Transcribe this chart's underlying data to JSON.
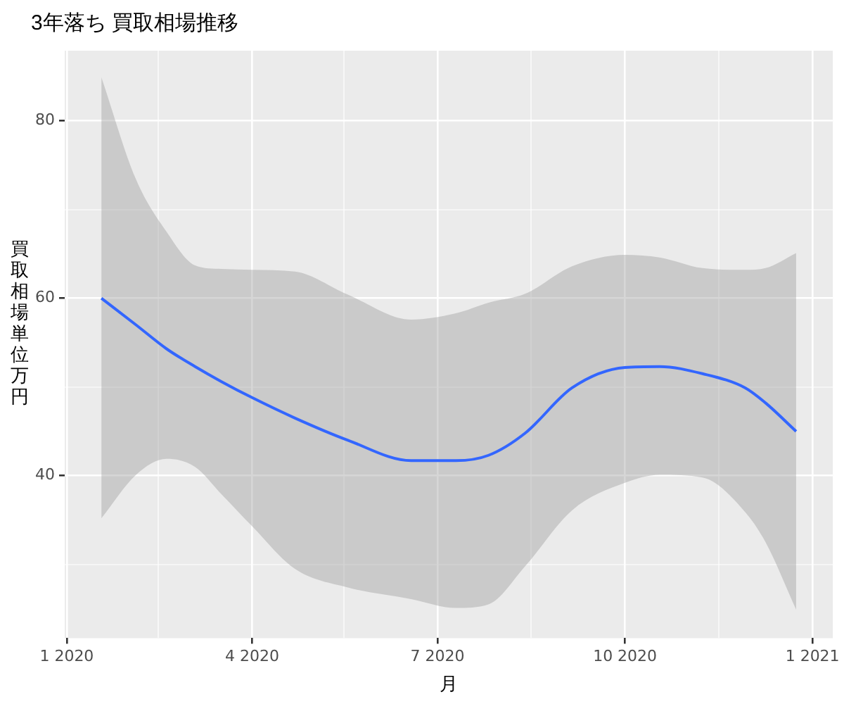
{
  "chart_data": {
    "type": "line",
    "title": "3年落ち 買取相場推移",
    "xlabel": "月",
    "ylabel": "買取相場単位万円",
    "xlim": [
      "2019-12-31",
      "2021-01-11"
    ],
    "xticks": [
      {
        "value": "2020-01-01",
        "label": "1 2020"
      },
      {
        "value": "2020-02-15",
        "label": null
      },
      {
        "value": "2020-04-01",
        "label": "4 2020"
      },
      {
        "value": "2020-05-16",
        "label": null
      },
      {
        "value": "2020-07-01",
        "label": "7 2020"
      },
      {
        "value": "2020-08-16",
        "label": null
      },
      {
        "value": "2020-10-01",
        "label": "10 2020"
      },
      {
        "value": "2020-11-16",
        "label": null
      },
      {
        "value": "2021-01-01",
        "label": "1 2021"
      }
    ],
    "ylim": [
      21.7,
      87.9
    ],
    "yticks": [
      {
        "value": 30,
        "label": null
      },
      40,
      {
        "value": 50,
        "label": null
      },
      60,
      {
        "value": 70,
        "label": null
      },
      80
    ],
    "grid": true,
    "legend": false,
    "marker": "none",
    "line_style": "solid",
    "series": [
      {
        "color": "#3366ff",
        "x": [
          "2020-01-18",
          "2020-02-04",
          "2020-02-19",
          "2020-03-04",
          "2020-03-17",
          "2020-04-01",
          "2020-04-22",
          "2020-05-18",
          "2020-06-18",
          "2020-07-10",
          "2020-07-26",
          "2020-08-13",
          "2020-09-05",
          "2020-10-01",
          "2020-10-18",
          "2020-11-08",
          "2020-11-29",
          "2020-12-09",
          "2020-12-24"
        ],
        "values": [
          60.0,
          57.0,
          54.3,
          52.3,
          50.6,
          48.8,
          46.5,
          44.0,
          41.7,
          41.7,
          42.3,
          44.8,
          49.9,
          52.2,
          52.3,
          51.5,
          49.9,
          48.2,
          45.0
        ],
        "upper": [
          84.9,
          73.4,
          67.5,
          63.7,
          63.3,
          63.2,
          63.0,
          60.4,
          57.6,
          58.3,
          59.5,
          60.5,
          63.6,
          64.9,
          64.6,
          63.4,
          63.2,
          63.4,
          65.1
        ],
        "lower": [
          35.2,
          40.1,
          41.9,
          41.0,
          37.9,
          34.3,
          29.5,
          27.4,
          26.1,
          25.1,
          25.5,
          29.8,
          36.1,
          39.2,
          40.1,
          39.8,
          35.9,
          32.5,
          24.9
        ]
      }
    ]
  }
}
